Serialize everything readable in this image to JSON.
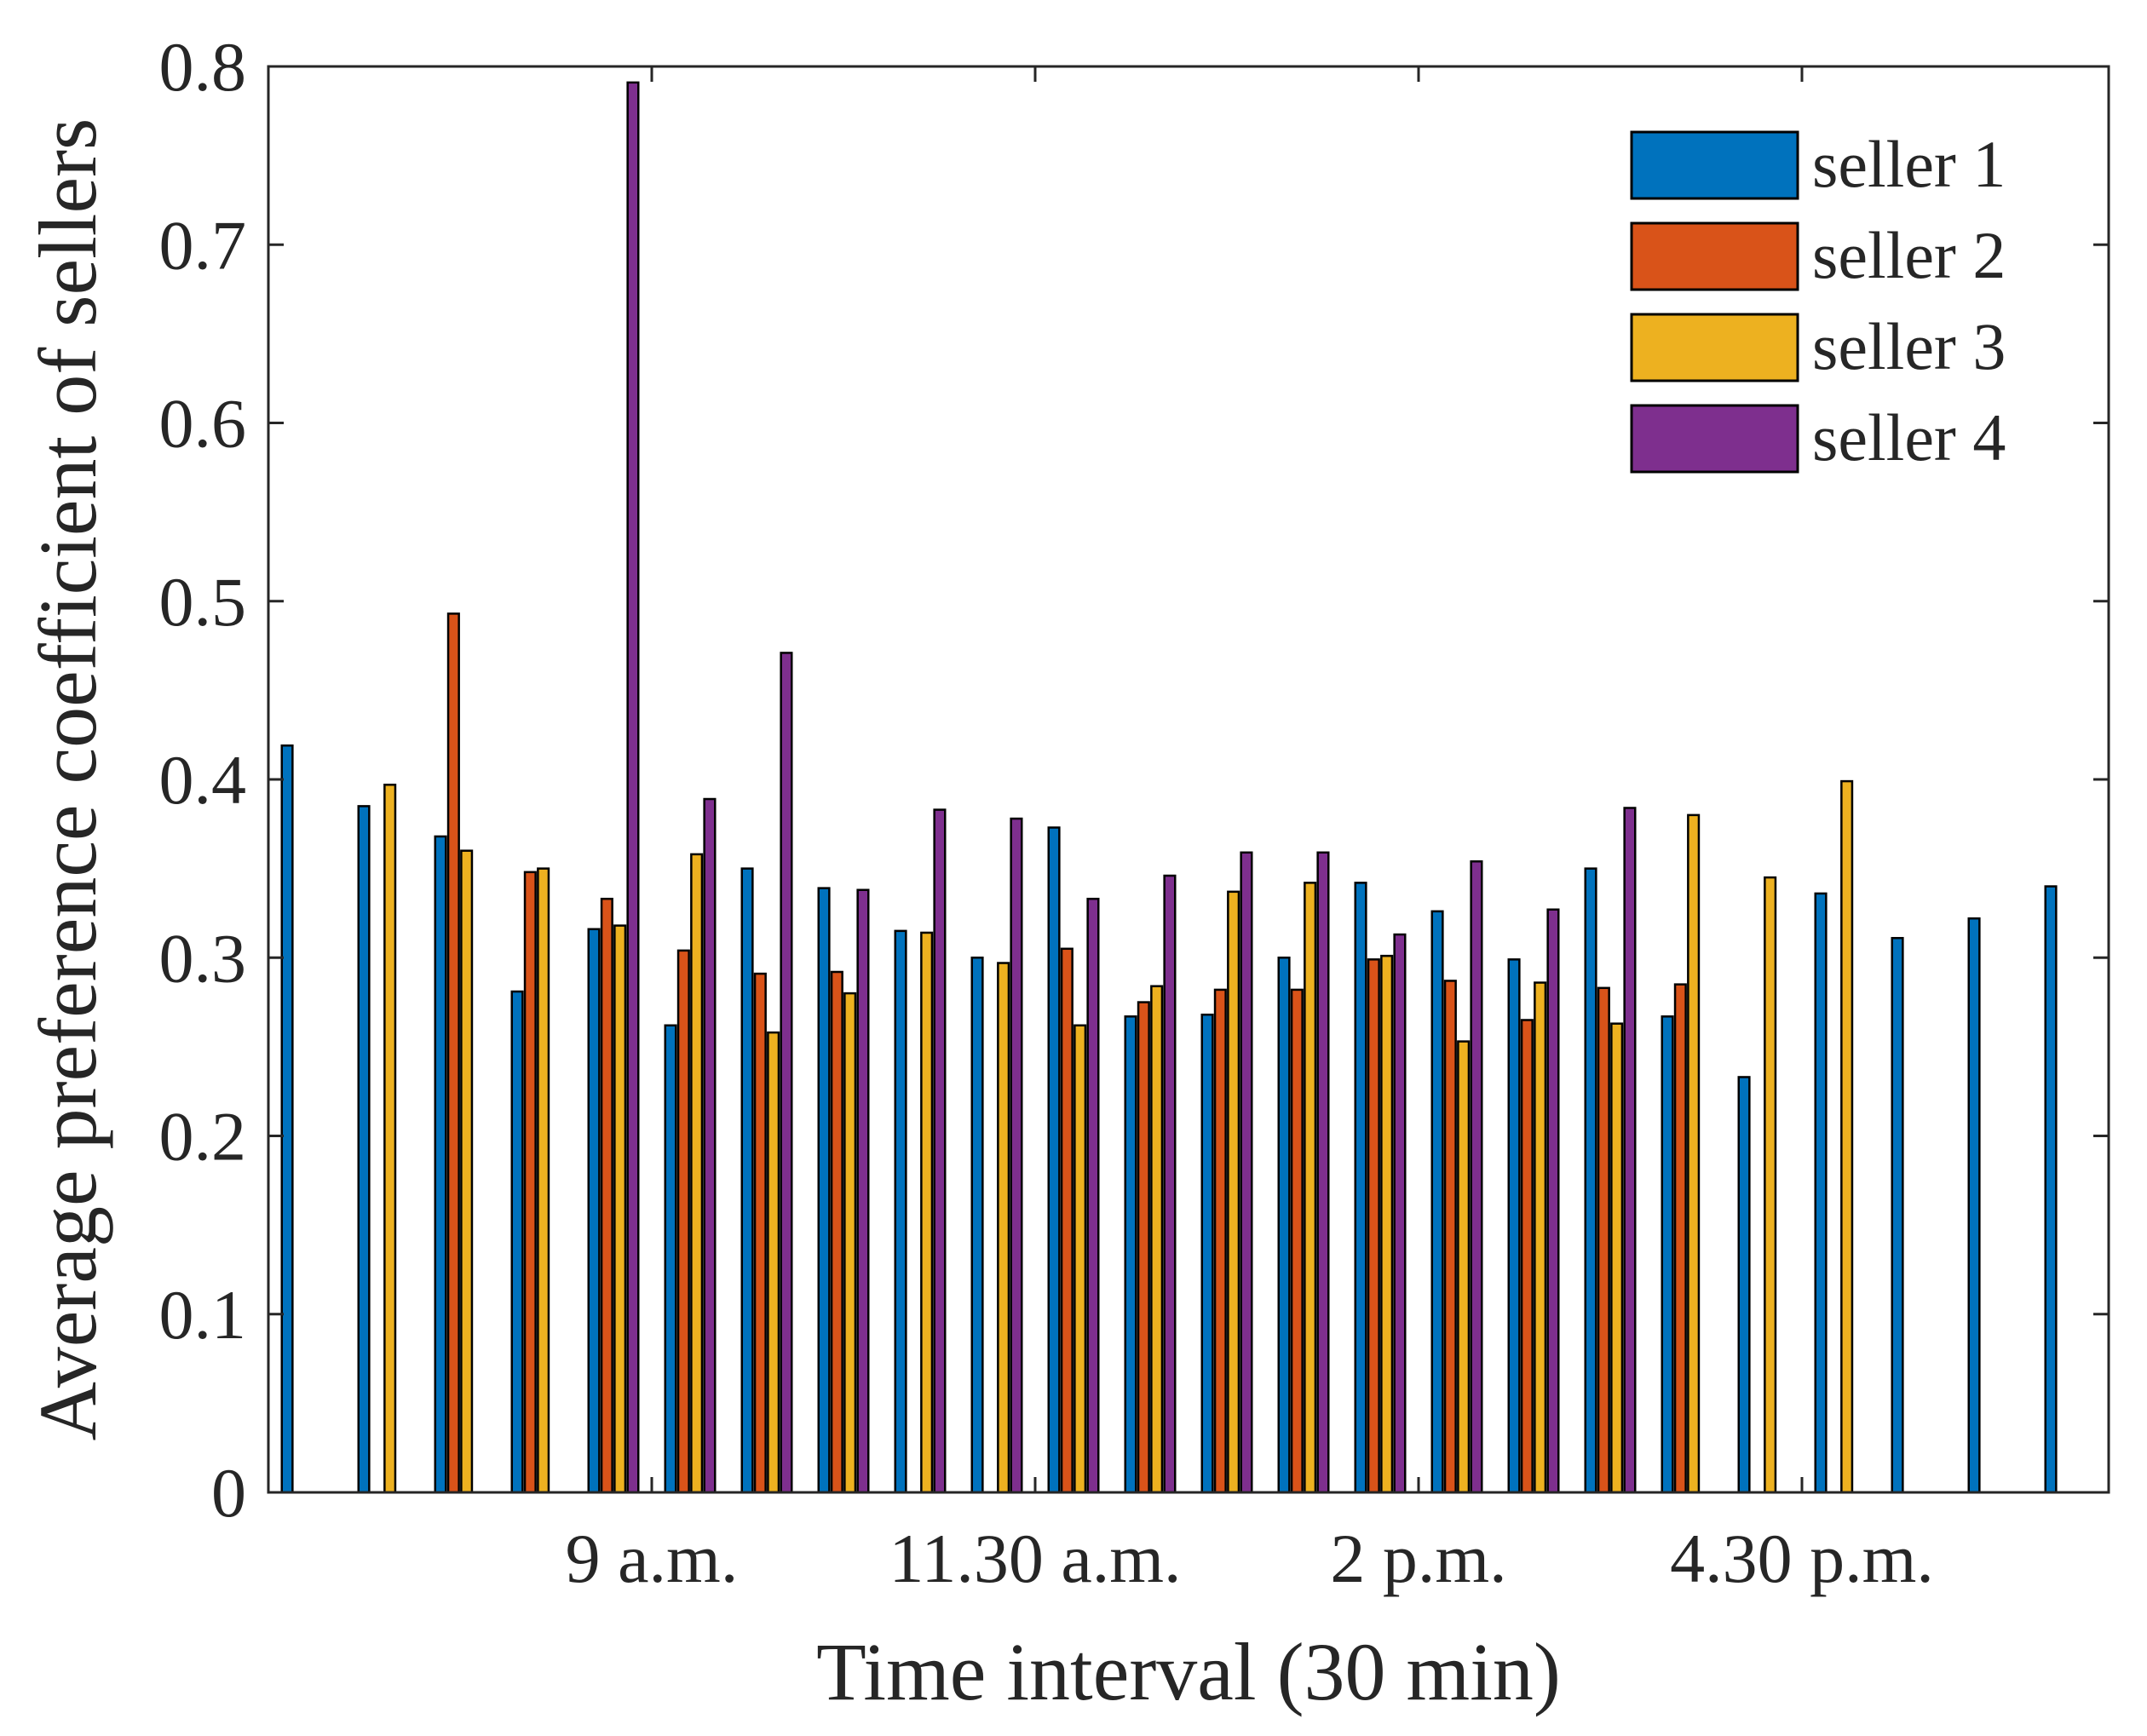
{
  "chart_data": {
    "type": "bar",
    "xlabel": "Time interval (30 min)",
    "ylabel": "Average preference coefficient of sellers",
    "ylim": [
      0,
      0.8
    ],
    "yticks": [
      "0",
      "0.1",
      "0.2",
      "0.3",
      "0.4",
      "0.5",
      "0.6",
      "0.7",
      "0.8"
    ],
    "xtick_labels": [
      {
        "label": "9 a.m.",
        "group": 5
      },
      {
        "label": "11.30 a.m.",
        "group": 10
      },
      {
        "label": "2 p.m.",
        "group": 15
      },
      {
        "label": "4.30 p.m.",
        "group": 20
      }
    ],
    "num_groups": 24,
    "legend_position": "top-right",
    "series": [
      {
        "name": "seller 1",
        "color": "#0072BD",
        "values": [
          0.419,
          0.385,
          0.368,
          0.281,
          0.316,
          0.262,
          0.35,
          0.339,
          0.315,
          0.3,
          0.373,
          0.267,
          0.268,
          0.3,
          0.342,
          0.326,
          0.299,
          0.35,
          0.267,
          0.233,
          0.336,
          0.311,
          0.322,
          0.34
        ]
      },
      {
        "name": "seller 2",
        "color": "#D95319",
        "values": [
          null,
          null,
          0.493,
          0.348,
          0.333,
          0.304,
          0.291,
          0.292,
          null,
          null,
          0.305,
          0.275,
          0.282,
          0.282,
          0.299,
          0.287,
          0.265,
          0.283,
          0.285,
          null,
          null,
          null,
          null,
          null
        ]
      },
      {
        "name": "seller 3",
        "color": "#EDB120",
        "values": [
          null,
          0.397,
          0.36,
          0.35,
          0.318,
          0.358,
          0.258,
          0.28,
          0.314,
          0.297,
          0.262,
          0.284,
          0.337,
          0.342,
          0.301,
          0.253,
          0.286,
          0.263,
          0.38,
          0.345,
          0.399,
          null,
          null,
          null
        ]
      },
      {
        "name": "seller 4",
        "color": "#7E2F8E",
        "values": [
          null,
          null,
          null,
          null,
          0.791,
          0.389,
          0.471,
          0.338,
          0.383,
          0.378,
          0.333,
          0.346,
          0.359,
          0.359,
          0.313,
          0.354,
          0.327,
          0.384,
          null,
          null,
          null,
          null,
          null,
          null
        ]
      }
    ]
  }
}
